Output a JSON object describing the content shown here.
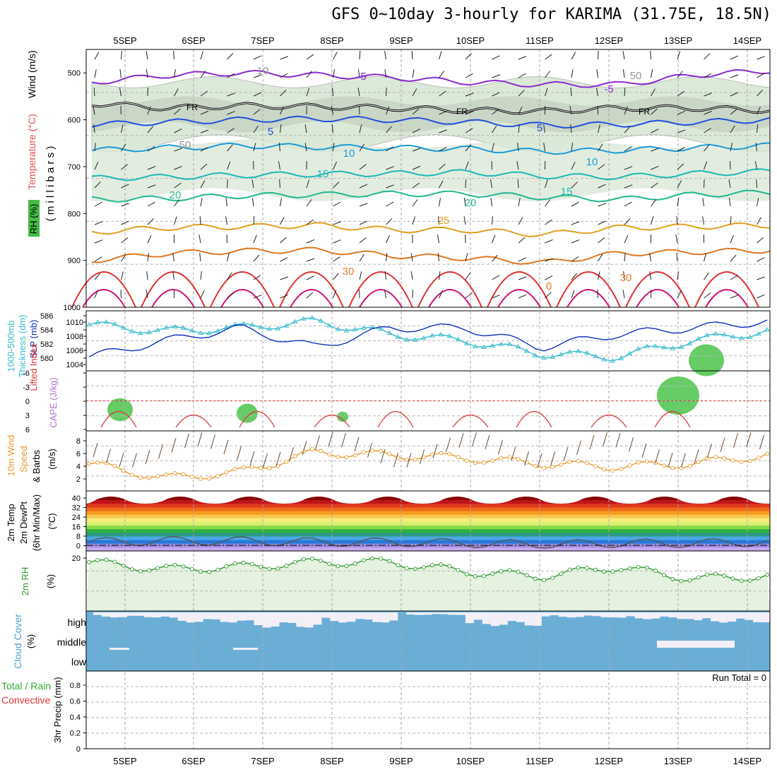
{
  "title": "GFS 0~10day 3-hourly for KARIMA (31.75E, 18.5N)",
  "dates": [
    "5SEP",
    "6SEP",
    "7SEP",
    "8SEP",
    "9SEP",
    "10SEP",
    "11SEP",
    "12SEP",
    "13SEP",
    "14SEP"
  ],
  "colors": {
    "temp_contour": "#5a78d8",
    "freezing": "#000000",
    "rh_light": "#dbe9d8",
    "rh_mid": "#c3cdbf",
    "rh_high": "#66cc66",
    "thickness": "#33bbcc",
    "slp": "#1030c0",
    "lifted": "#dd3333",
    "wind": "#e89a30",
    "rh2m": "#339933",
    "cloud": "#6aaed6",
    "cloud_gap": "#f3eff7"
  },
  "panels": {
    "upper": {
      "ylabel_lines": [
        "Wind (m/s)",
        "Temperature (°C)",
        "RH (%)",
        "( m i l l i b a r s )"
      ],
      "ticks": [
        "500",
        "600",
        "700",
        "800",
        "900",
        "1000"
      ],
      "contour_labels": [
        "-5",
        "-5",
        "FR",
        "FR",
        "FR",
        "5",
        "5",
        "10",
        "10",
        "15",
        "15",
        "20",
        "20",
        "25",
        "30",
        "30",
        "0",
        "30",
        "30",
        "30",
        "50",
        "50",
        "10"
      ]
    },
    "thickness": {
      "ylabel_lines": [
        "1000-500mb",
        "Thickness (dm)",
        "SLP (mb)"
      ],
      "left_ticks": [
        "586",
        "584",
        "582",
        "580"
      ],
      "right_ticks": [
        "1010",
        "1008",
        "1006",
        "1004"
      ]
    },
    "cape": {
      "ylabel_lines": [
        "Lifted Index",
        "CAPE (J/kg)"
      ],
      "ticks": [
        "-6",
        "-3",
        "0",
        "3",
        "6"
      ]
    },
    "wind10": {
      "ylabel_lines": [
        "10m Wind",
        "Speed",
        "& Barbs",
        "(m/s)"
      ],
      "ticks": [
        "8",
        "6",
        "4",
        "2"
      ]
    },
    "temp2m": {
      "ylabel_lines": [
        "2m Temp",
        "2m DewPt",
        "(6hr Min/Max)",
        "(°C)"
      ],
      "ticks": [
        "40",
        "32",
        "24",
        "16",
        "8",
        "0"
      ]
    },
    "rh2m": {
      "ylabel_lines": [
        "2m RH",
        "(%)"
      ],
      "ticks": [
        "20"
      ]
    },
    "cloud": {
      "ylabel_lines": [
        "Cloud Cover",
        "(%)"
      ],
      "levels": [
        "high",
        "middle",
        "low"
      ]
    },
    "precip": {
      "ylabel_lines": [
        "Total / Rain",
        "Convective",
        "3hr Precip (mm)"
      ],
      "ticks": [
        "0.8",
        "0.6",
        "0.4",
        "0.2",
        "0"
      ],
      "run_total": "Run Total = 0"
    }
  },
  "chart_data": [
    {
      "type": "line",
      "title": "Upper air (RH, temperature, wind)",
      "x": [
        "5SEP",
        "6SEP",
        "7SEP",
        "8SEP",
        "9SEP",
        "10SEP",
        "11SEP",
        "12SEP",
        "13SEP",
        "14SEP"
      ],
      "yunits": "millibars",
      "ylim": [
        1000,
        450
      ],
      "series": [
        {
          "name": "-5",
          "values": [
            520,
            505,
            500,
            505,
            510,
            520,
            525,
            525,
            505,
            495
          ]
        },
        {
          "name": "FR",
          "values": [
            565,
            575,
            570,
            572,
            575,
            580,
            582,
            575,
            575,
            580
          ]
        },
        {
          "name": "5",
          "values": [
            610,
            605,
            600,
            598,
            600,
            605,
            612,
            610,
            605,
            600
          ]
        },
        {
          "name": "10",
          "values": [
            665,
            660,
            655,
            658,
            660,
            662,
            668,
            665,
            660,
            655
          ]
        },
        {
          "name": "15",
          "values": [
            725,
            722,
            718,
            716,
            715,
            712,
            720,
            722,
            715,
            710
          ]
        },
        {
          "name": "20",
          "values": [
            770,
            768,
            762,
            760,
            758,
            758,
            765,
            770,
            760,
            755
          ]
        },
        {
          "name": "25",
          "values": [
            840,
            830,
            828,
            825,
            835,
            835,
            845,
            830,
            828,
            825
          ]
        },
        {
          "name": "30",
          "values": [
            900,
            885,
            880,
            878,
            890,
            895,
            905,
            885,
            882,
            878
          ]
        }
      ]
    },
    {
      "type": "line",
      "title": "1000-500mb Thickness / SLP",
      "x": [
        "5SEP",
        "6SEP",
        "7SEP",
        "8SEP",
        "9SEP",
        "10SEP",
        "11SEP",
        "12SEP",
        "13SEP",
        "14SEP"
      ],
      "ylim": [
        579,
        587
      ],
      "series": [
        {
          "name": "1000-500mb Thickness (dm)",
          "values": [
            585.5,
            584.5,
            585,
            586,
            584,
            583,
            581,
            580.5,
            583,
            584.5
          ]
        },
        {
          "name": "SLP (mb)",
          "values": [
            1004.5,
            1007,
            1009,
            1006,
            1009,
            1009,
            1006,
            1008,
            1009,
            1010
          ]
        }
      ]
    },
    {
      "type": "line",
      "title": "Lifted Index",
      "x": [
        "5SEP",
        "6SEP",
        "7SEP",
        "8SEP",
        "9SEP",
        "10SEP",
        "11SEP",
        "12SEP",
        "13SEP",
        "14SEP"
      ],
      "ylim": [
        -6,
        6
      ],
      "series": [
        {
          "name": "Lifted Index",
          "values": [
            5,
            3,
            5,
            3,
            4,
            3,
            6,
            6,
            4,
            3
          ]
        }
      ]
    },
    {
      "type": "line",
      "title": "10m Wind Speed",
      "x": [
        "5SEP",
        "6SEP",
        "7SEP",
        "8SEP",
        "9SEP",
        "10SEP",
        "11SEP",
        "12SEP",
        "13SEP",
        "14SEP"
      ],
      "ylim": [
        0,
        9
      ],
      "series": [
        {
          "name": "10m Wind Speed",
          "values": [
            4,
            1.5,
            2.5,
            6,
            5.5,
            5,
            4,
            3.5,
            4,
            5.5
          ]
        }
      ]
    },
    {
      "type": "area",
      "title": "2m Temp",
      "x": [
        "5SEP",
        "6SEP",
        "7SEP",
        "8SEP",
        "9SEP",
        "10SEP",
        "11SEP",
        "12SEP",
        "13SEP",
        "14SEP"
      ],
      "ylim": [
        -3,
        42
      ],
      "series": [
        {
          "name": "2m Temp max",
          "values": [
            41,
            41,
            41,
            41,
            41,
            41,
            41,
            41,
            41,
            40
          ]
        },
        {
          "name": "2m DewPt",
          "values": [
            2,
            3,
            3,
            2,
            2,
            1,
            0,
            1,
            1,
            2
          ]
        }
      ]
    },
    {
      "type": "line",
      "title": "2m RH",
      "x": [
        "5SEP",
        "6SEP",
        "7SEP",
        "8SEP",
        "9SEP",
        "10SEP",
        "11SEP",
        "12SEP",
        "13SEP",
        "14SEP"
      ],
      "ylim": [
        0,
        22
      ],
      "series": [
        {
          "name": "2m RH",
          "values": [
            19,
            16,
            17,
            19,
            19,
            15,
            13,
            17,
            12,
            13
          ]
        }
      ]
    },
    {
      "type": "heatmap",
      "title": "Cloud Cover",
      "x": [
        "5SEP",
        "6SEP",
        "7SEP",
        "8SEP",
        "9SEP",
        "10SEP",
        "11SEP",
        "12SEP",
        "13SEP",
        "14SEP"
      ],
      "series": [
        {
          "name": "high",
          "values": [
            70,
            40,
            10,
            40,
            85,
            20,
            70,
            60,
            40,
            80
          ]
        },
        {
          "name": "middle",
          "values": [
            0,
            0,
            0,
            0,
            0,
            0,
            0,
            0,
            20,
            0
          ]
        },
        {
          "name": "low",
          "values": [
            0,
            0,
            0,
            0,
            0,
            0,
            0,
            0,
            0,
            0
          ]
        }
      ]
    },
    {
      "type": "bar",
      "title": "3hr Precip",
      "x": [
        "5SEP",
        "6SEP",
        "7SEP",
        "8SEP",
        "9SEP",
        "10SEP",
        "11SEP",
        "12SEP",
        "13SEP",
        "14SEP"
      ],
      "ylim": [
        0,
        0.9
      ],
      "series": [
        {
          "name": "3hr Precip",
          "values": [
            0,
            0,
            0,
            0,
            0,
            0,
            0,
            0,
            0,
            0
          ]
        }
      ]
    }
  ]
}
